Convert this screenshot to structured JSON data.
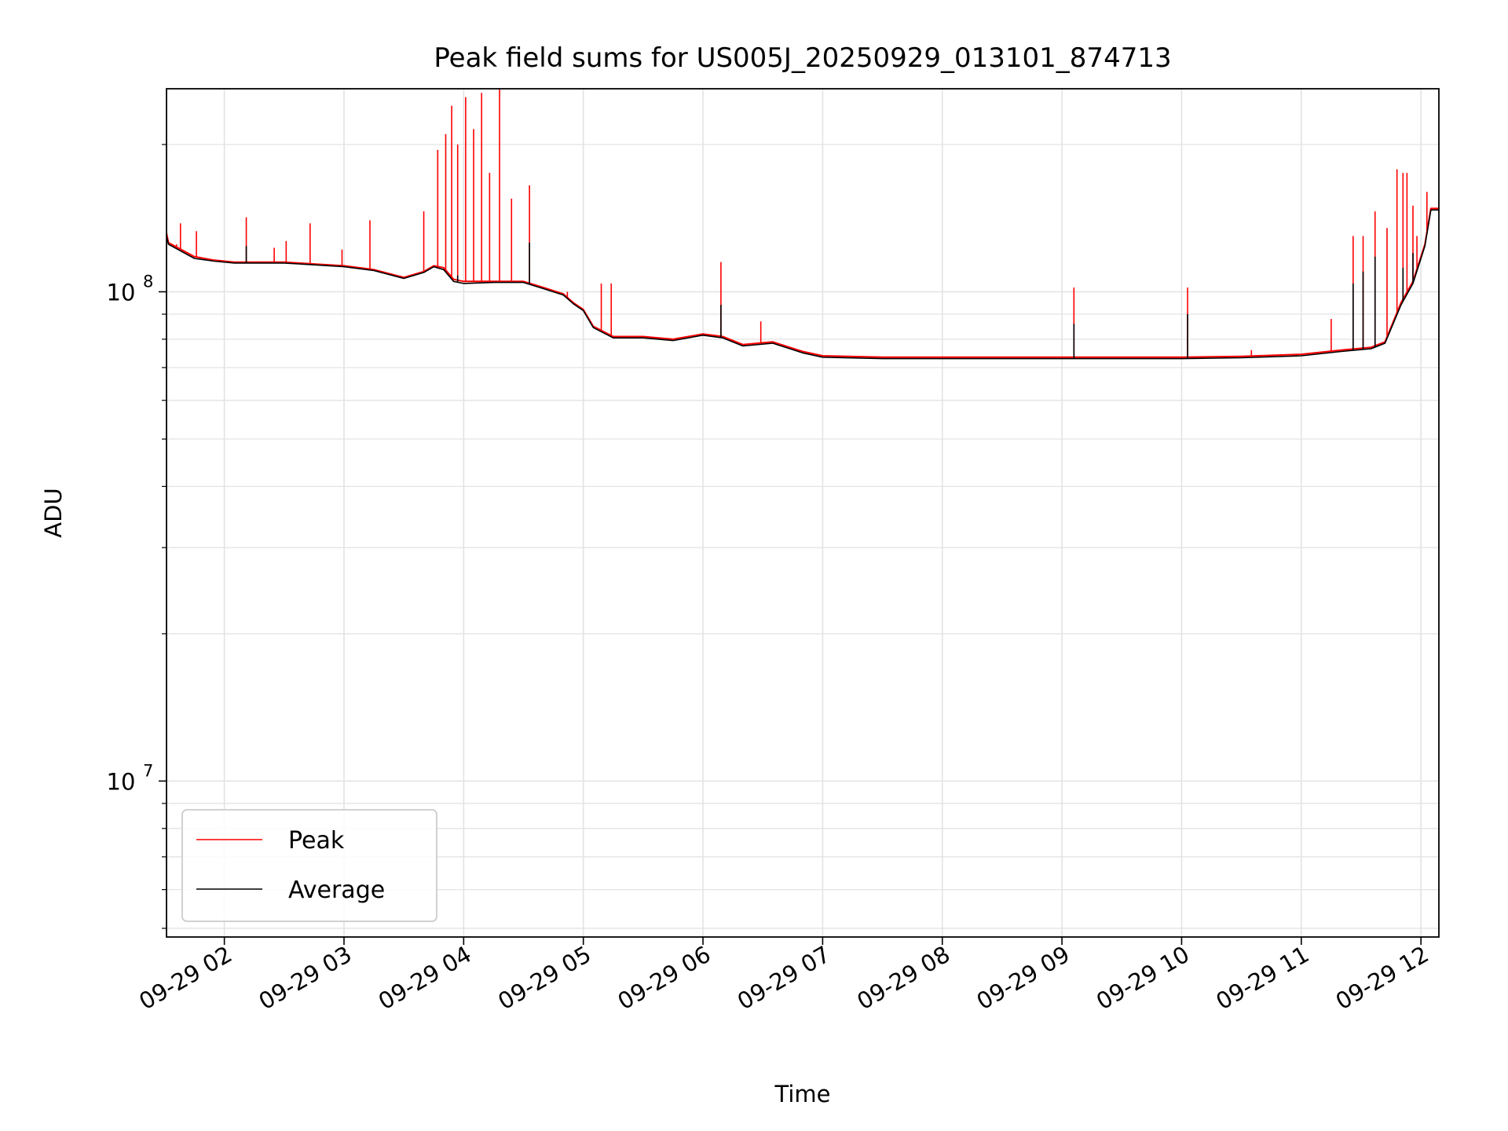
{
  "chart_data": {
    "type": "line",
    "title": "Peak field sums for US005J_20250929_013101_874713",
    "xlabel": "Time",
    "ylabel": "ADU",
    "yscale": "log",
    "ylim": [
      4800000,
      260000000
    ],
    "xlim": [
      "2025-09-29T01:31:00",
      "2025-09-29T12:09:00"
    ],
    "x_ticks": [
      "09-29 02",
      "09-29 03",
      "09-29 04",
      "09-29 05",
      "09-29 06",
      "09-29 07",
      "09-29 08",
      "09-29 09",
      "09-29 10",
      "09-29 11",
      "09-29 12"
    ],
    "y_ticks": [
      {
        "value": 10000000,
        "label_base": "10",
        "label_exp": "7"
      },
      {
        "value": 100000000,
        "label_base": "10",
        "label_exp": "8"
      }
    ],
    "grid": true,
    "legend_position": "lower-left",
    "series": [
      {
        "name": "Peak",
        "color": "#ff0000",
        "x": [
          "2025-09-29T01:31:00",
          "2025-09-29T01:32:00",
          "2025-09-29T01:45:00",
          "2025-09-29T01:55:00",
          "2025-09-29T02:05:00",
          "2025-09-29T02:10:00",
          "2025-09-29T02:15:00",
          "2025-09-29T02:30:00",
          "2025-09-29T02:45:00",
          "2025-09-29T03:00:00",
          "2025-09-29T03:15:00",
          "2025-09-29T03:30:00",
          "2025-09-29T03:40:00",
          "2025-09-29T03:45:00",
          "2025-09-29T03:50:00",
          "2025-09-29T03:55:00",
          "2025-09-29T04:00:00",
          "2025-09-29T04:15:00",
          "2025-09-29T04:30:00",
          "2025-09-29T04:40:00",
          "2025-09-29T04:50:00",
          "2025-09-29T04:55:00",
          "2025-09-29T05:00:00",
          "2025-09-29T05:05:00",
          "2025-09-29T05:15:00",
          "2025-09-29T05:30:00",
          "2025-09-29T05:45:00",
          "2025-09-29T06:00:00",
          "2025-09-29T06:10:00",
          "2025-09-29T06:20:00",
          "2025-09-29T06:35:00",
          "2025-09-29T06:50:00",
          "2025-09-29T07:00:00",
          "2025-09-29T07:30:00",
          "2025-09-29T08:00:00",
          "2025-09-29T08:30:00",
          "2025-09-29T09:00:00",
          "2025-09-29T09:30:00",
          "2025-09-29T10:00:00",
          "2025-09-29T10:30:00",
          "2025-09-29T11:00:00",
          "2025-09-29T11:20:00",
          "2025-09-29T11:35:00",
          "2025-09-29T11:42:00",
          "2025-09-29T11:50:00",
          "2025-09-29T11:56:00",
          "2025-09-29T12:02:00",
          "2025-09-29T12:05:00",
          "2025-09-29T12:09:00"
        ],
        "y": [
          132000000,
          126000000,
          118000000,
          116000000,
          115000000,
          115000000,
          115000000,
          115000000,
          114000000,
          113000000,
          111000000,
          107000000,
          110000000,
          113000000,
          112000000,
          106000000,
          105000000,
          105000000,
          105000000,
          102000000,
          99000000,
          95000000,
          92000000,
          85000000,
          81000000,
          81000000,
          80000000,
          82000000,
          81000000,
          78000000,
          79000000,
          75500000,
          74000000,
          73500000,
          73500000,
          73500000,
          73500000,
          73500000,
          73500000,
          73800000,
          74500000,
          76000000,
          77000000,
          79000000,
          95000000,
          105000000,
          125000000,
          148000000,
          148000000
        ],
        "spikes": [
          {
            "x": "2025-09-29T01:36:00",
            "y": 125000000
          },
          {
            "x": "2025-09-29T01:38:00",
            "y": 138000000
          },
          {
            "x": "2025-09-29T01:46:00",
            "y": 133000000
          },
          {
            "x": "2025-09-29T02:11:00",
            "y": 142000000
          },
          {
            "x": "2025-09-29T02:25:00",
            "y": 123000000
          },
          {
            "x": "2025-09-29T02:31:00",
            "y": 127000000
          },
          {
            "x": "2025-09-29T02:43:00",
            "y": 138000000
          },
          {
            "x": "2025-09-29T02:59:00",
            "y": 122000000
          },
          {
            "x": "2025-09-29T03:13:00",
            "y": 140000000
          },
          {
            "x": "2025-09-29T03:40:00",
            "y": 146000000
          },
          {
            "x": "2025-09-29T03:47:00",
            "y": 195000000
          },
          {
            "x": "2025-09-29T03:51:00",
            "y": 210000000
          },
          {
            "x": "2025-09-29T03:54:00",
            "y": 240000000
          },
          {
            "x": "2025-09-29T03:57:00",
            "y": 200000000
          },
          {
            "x": "2025-09-29T04:01:00",
            "y": 250000000
          },
          {
            "x": "2025-09-29T04:05:00",
            "y": 215000000
          },
          {
            "x": "2025-09-29T04:09:00",
            "y": 255000000
          },
          {
            "x": "2025-09-29T04:13:00",
            "y": 175000000
          },
          {
            "x": "2025-09-29T04:18:00",
            "y": 260000000
          },
          {
            "x": "2025-09-29T04:24:00",
            "y": 155000000
          },
          {
            "x": "2025-09-29T04:33:00",
            "y": 165000000
          },
          {
            "x": "2025-09-29T04:52:00",
            "y": 100000000
          },
          {
            "x": "2025-09-29T05:09:00",
            "y": 104000000
          },
          {
            "x": "2025-09-29T05:14:00",
            "y": 104000000
          },
          {
            "x": "2025-09-29T06:09:00",
            "y": 115000000
          },
          {
            "x": "2025-09-29T06:29:00",
            "y": 87000000
          },
          {
            "x": "2025-09-29T09:06:00",
            "y": 102000000
          },
          {
            "x": "2025-09-29T10:03:00",
            "y": 102000000
          },
          {
            "x": "2025-09-29T10:35:00",
            "y": 76000000
          },
          {
            "x": "2025-09-29T11:15:00",
            "y": 88000000
          },
          {
            "x": "2025-09-29T11:26:00",
            "y": 130000000
          },
          {
            "x": "2025-09-29T11:31:00",
            "y": 130000000
          },
          {
            "x": "2025-09-29T11:37:00",
            "y": 146000000
          },
          {
            "x": "2025-09-29T11:43:00",
            "y": 135000000
          },
          {
            "x": "2025-09-29T11:48:00",
            "y": 178000000
          },
          {
            "x": "2025-09-29T11:51:00",
            "y": 175000000
          },
          {
            "x": "2025-09-29T11:53:00",
            "y": 175000000
          },
          {
            "x": "2025-09-29T11:56:00",
            "y": 150000000
          },
          {
            "x": "2025-09-29T11:58:00",
            "y": 130000000
          },
          {
            "x": "2025-09-29T12:03:00",
            "y": 160000000
          }
        ]
      },
      {
        "name": "Average",
        "color": "#000000",
        "x": [
          "2025-09-29T01:31:00",
          "2025-09-29T01:32:00",
          "2025-09-29T01:45:00",
          "2025-09-29T01:55:00",
          "2025-09-29T02:05:00",
          "2025-09-29T02:10:00",
          "2025-09-29T02:15:00",
          "2025-09-29T02:30:00",
          "2025-09-29T02:45:00",
          "2025-09-29T03:00:00",
          "2025-09-29T03:15:00",
          "2025-09-29T03:30:00",
          "2025-09-29T03:40:00",
          "2025-09-29T03:45:00",
          "2025-09-29T03:50:00",
          "2025-09-29T03:55:00",
          "2025-09-29T04:00:00",
          "2025-09-29T04:15:00",
          "2025-09-29T04:30:00",
          "2025-09-29T04:40:00",
          "2025-09-29T04:50:00",
          "2025-09-29T04:55:00",
          "2025-09-29T05:00:00",
          "2025-09-29T05:05:00",
          "2025-09-29T05:15:00",
          "2025-09-29T05:30:00",
          "2025-09-29T05:45:00",
          "2025-09-29T06:00:00",
          "2025-09-29T06:10:00",
          "2025-09-29T06:20:00",
          "2025-09-29T06:35:00",
          "2025-09-29T06:50:00",
          "2025-09-29T07:00:00",
          "2025-09-29T07:30:00",
          "2025-09-29T08:00:00",
          "2025-09-29T08:30:00",
          "2025-09-29T09:00:00",
          "2025-09-29T09:30:00",
          "2025-09-29T10:00:00",
          "2025-09-29T10:30:00",
          "2025-09-29T11:00:00",
          "2025-09-29T11:20:00",
          "2025-09-29T11:35:00",
          "2025-09-29T11:42:00",
          "2025-09-29T11:50:00",
          "2025-09-29T11:56:00",
          "2025-09-29T12:02:00",
          "2025-09-29T12:05:00",
          "2025-09-29T12:09:00"
        ],
        "y": [
          130000000,
          125000000,
          117000000,
          115500000,
          114500000,
          114500000,
          114500000,
          114500000,
          113500000,
          112500000,
          110500000,
          106500000,
          109500000,
          112500000,
          111000000,
          105000000,
          104000000,
          104500000,
          104500000,
          101500000,
          98500000,
          94500000,
          91500000,
          84500000,
          80500000,
          80500000,
          79500000,
          81500000,
          80500000,
          77500000,
          78500000,
          75000000,
          73500000,
          73000000,
          73000000,
          73000000,
          73000000,
          73000000,
          73000000,
          73300000,
          74000000,
          75500000,
          76500000,
          78500000,
          94000000,
          104000000,
          124000000,
          147000000,
          147000000
        ],
        "spikes": [
          {
            "x": "2025-09-29T02:11:00",
            "y": 124000000
          },
          {
            "x": "2025-09-29T03:57:00",
            "y": 108000000
          },
          {
            "x": "2025-09-29T04:33:00",
            "y": 126000000
          },
          {
            "x": "2025-09-29T06:09:00",
            "y": 94000000
          },
          {
            "x": "2025-09-29T09:06:00",
            "y": 86000000
          },
          {
            "x": "2025-09-29T10:03:00",
            "y": 90000000
          },
          {
            "x": "2025-09-29T11:26:00",
            "y": 104000000
          },
          {
            "x": "2025-09-29T11:31:00",
            "y": 110000000
          },
          {
            "x": "2025-09-29T11:37:00",
            "y": 118000000
          },
          {
            "x": "2025-09-29T11:51:00",
            "y": 112000000
          },
          {
            "x": "2025-09-29T11:56:00",
            "y": 120000000
          }
        ]
      }
    ]
  }
}
